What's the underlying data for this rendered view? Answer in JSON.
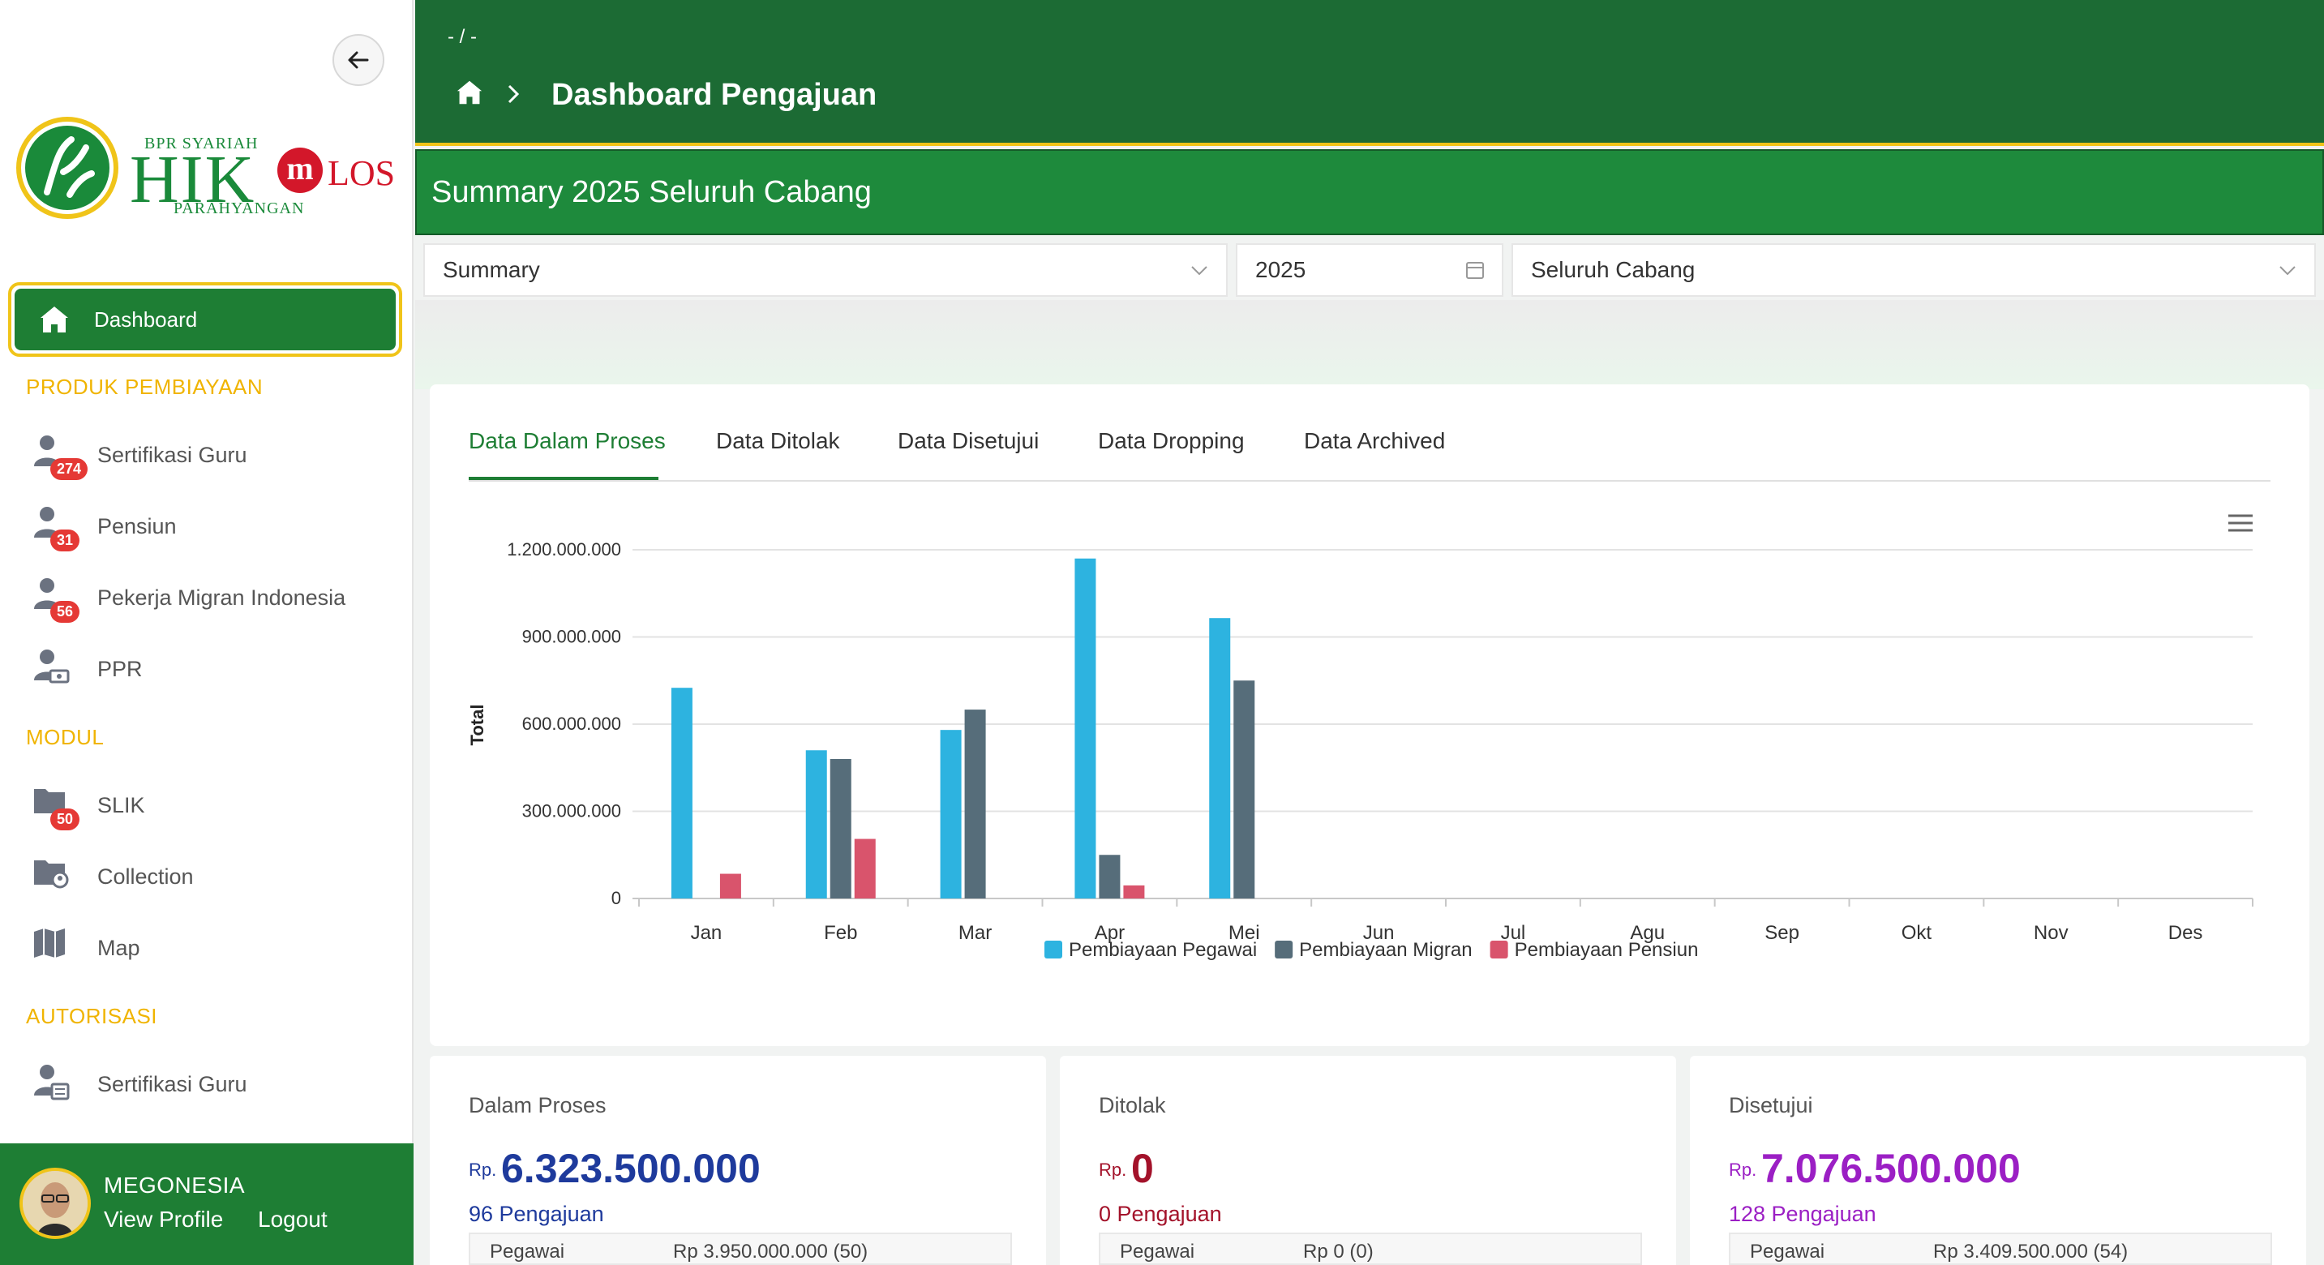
{
  "sidebar": {
    "logo": {
      "small": "BPR SYARIAH",
      "main": "HIK",
      "sub": "PARAHYANGAN",
      "m": "m",
      "los": "LOS"
    },
    "active_item": "Dashboard",
    "sections": [
      {
        "title": "PRODUK PEMBIAYAAN",
        "items": [
          {
            "label": "Sertifikasi Guru",
            "badge": "274",
            "icon": "user-badge-icon"
          },
          {
            "label": "Pensiun",
            "badge": "31",
            "icon": "user-badge-icon"
          },
          {
            "label": "Pekerja Migran Indonesia",
            "badge": "56",
            "icon": "user-badge-icon"
          },
          {
            "label": "PPR",
            "badge": "",
            "icon": "user-money-icon"
          }
        ]
      },
      {
        "title": "MODUL",
        "items": [
          {
            "label": "SLIK",
            "badge": "50",
            "icon": "folder-search-icon"
          },
          {
            "label": "Collection",
            "badge": "",
            "icon": "folder-user-icon"
          },
          {
            "label": "Map",
            "badge": "",
            "icon": "map-icon"
          }
        ]
      },
      {
        "title": "AUTORISASI",
        "items": [
          {
            "label": "Sertifikasi Guru",
            "badge": "",
            "icon": "user-list-icon"
          }
        ]
      }
    ],
    "profile": {
      "name": "MEGONESIA",
      "view_profile": "View Profile",
      "logout": "Logout"
    }
  },
  "header": {
    "crumb_small": "- / -",
    "title": "Dashboard Pengajuan"
  },
  "summary_title": "Summary 2025 Seluruh Cabang",
  "filters": {
    "type": "Summary",
    "year": "2025",
    "branch": "Seluruh Cabang"
  },
  "tabs": [
    "Data Dalam Proses",
    "Data Ditolak",
    "Data Disetujui",
    "Data Dropping",
    "Data Archived"
  ],
  "chart_data": {
    "type": "bar",
    "ylabel": "Total",
    "xlabel": "",
    "ylim": [
      0,
      1200000000
    ],
    "yticks": [
      "0",
      "300.000.000",
      "600.000.000",
      "900.000.000",
      "1.200.000.000"
    ],
    "categories": [
      "Jan",
      "Feb",
      "Mar",
      "Apr",
      "Mei",
      "Jun",
      "Jul",
      "Agu",
      "Sep",
      "Okt",
      "Nov",
      "Des"
    ],
    "series": [
      {
        "name": "Pembiayaan Pegawai",
        "color": "#2db3e0",
        "values": [
          725000000,
          510000000,
          580000000,
          1170000000,
          965000000,
          0,
          0,
          0,
          0,
          0,
          0,
          0
        ]
      },
      {
        "name": "Pembiayaan Migran",
        "color": "#566d7a",
        "values": [
          0,
          480000000,
          650000000,
          150000000,
          750000000,
          0,
          0,
          0,
          0,
          0,
          0,
          0
        ]
      },
      {
        "name": "Pembiayaan Pensiun",
        "color": "#d9546c",
        "values": [
          85000000,
          205000000,
          0,
          45000000,
          0,
          0,
          0,
          0,
          0,
          0,
          0,
          0
        ]
      }
    ],
    "legend_position": "bottom"
  },
  "stats": [
    {
      "title": "Dalam Proses",
      "rp": "Rp.",
      "amount": "6.323.500.000",
      "count": "96 Pengajuan",
      "row_key": "Pegawai",
      "row_val": "Rp 3.950.000.000 (50)",
      "color": "#1e3a9c"
    },
    {
      "title": "Ditolak",
      "rp": "Rp.",
      "amount": "0",
      "count": "0 Pengajuan",
      "row_key": "Pegawai",
      "row_val": "Rp 0 (0)",
      "color": "#a3122a"
    },
    {
      "title": "Disetujui",
      "rp": "Rp.",
      "amount": "7.076.500.000",
      "count": "128 Pengajuan",
      "row_key": "Pegawai",
      "row_val": "Rp 3.409.500.000 (54)",
      "color": "#9b1fc4"
    }
  ]
}
